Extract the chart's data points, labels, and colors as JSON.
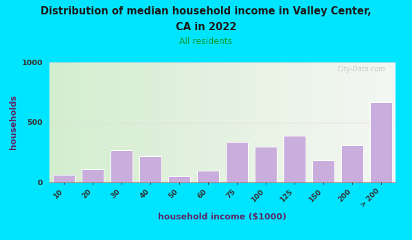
{
  "title_line1": "Distribution of median household income in Valley Center,",
  "title_line2": "CA in 2022",
  "subtitle": "All residents",
  "xlabel": "household income ($1000)",
  "ylabel": "households",
  "categories": [
    "10",
    "20",
    "30",
    "40",
    "50",
    "60",
    "75",
    "100",
    "125",
    "150",
    "200",
    "> 200"
  ],
  "values": [
    65,
    110,
    270,
    215,
    50,
    95,
    340,
    300,
    390,
    185,
    310,
    670
  ],
  "bar_color": "#c9aedd",
  "bar_edge_color": "#ffffff",
  "ylim": [
    0,
    1000
  ],
  "yticks": [
    0,
    500,
    1000
  ],
  "bg_color": "#e8f5e0",
  "outer_bg": "#00e5ff",
  "title_color": "#1a1a1a",
  "subtitle_color": "#009933",
  "axis_label_color": "#5a2a6a",
  "tick_color": "#333333",
  "watermark": "City-Data.com",
  "grid_color": "#e8d8d8",
  "grid_alpha": 0.8
}
